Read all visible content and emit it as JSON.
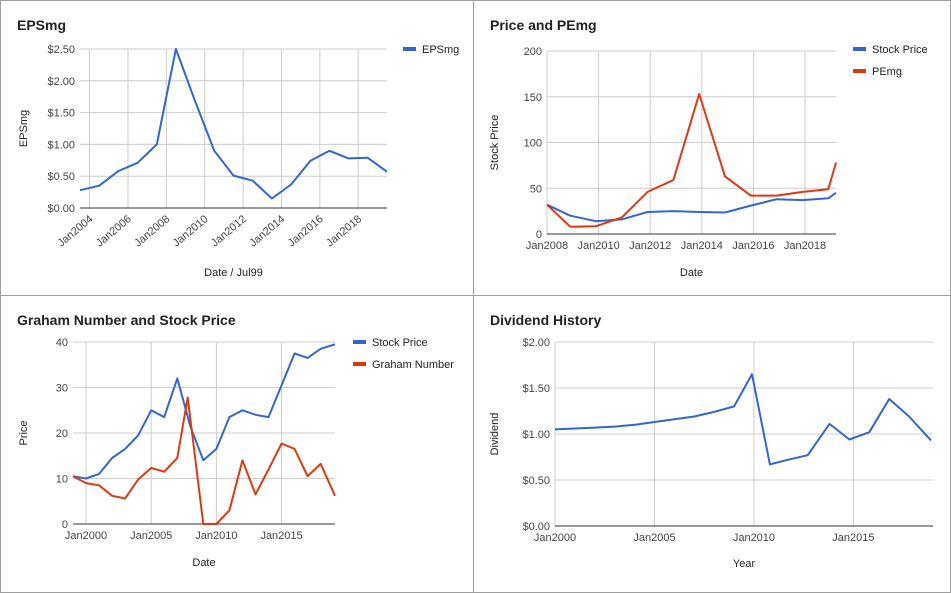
{
  "colors": {
    "blue": "#3366cc",
    "red": "#dc3912",
    "grid": "#cccccc",
    "axis": "#333333"
  },
  "chart_data": [
    {
      "id": "epsmg",
      "type": "line",
      "title": "EPSmg",
      "xlabel": "Date / Jul99",
      "ylabel": "EPSmg",
      "xlim": [
        2003.5,
        2019.5
      ],
      "ylim": [
        0,
        2.5
      ],
      "yticks": [
        {
          "v": 0,
          "label": "$0.00"
        },
        {
          "v": 0.5,
          "label": "$0.50"
        },
        {
          "v": 1,
          "label": "$1.00"
        },
        {
          "v": 1.5,
          "label": "$1.50"
        },
        {
          "v": 2,
          "label": "$2.00"
        },
        {
          "v": 2.5,
          "label": "$2.50"
        }
      ],
      "xticks": [
        {
          "v": 2004,
          "label": "Jan2004"
        },
        {
          "v": 2006,
          "label": "Jan2006"
        },
        {
          "v": 2008,
          "label": "Jan2008"
        },
        {
          "v": 2010,
          "label": "Jan2010"
        },
        {
          "v": 2012,
          "label": "Jan2012"
        },
        {
          "v": 2014,
          "label": "Jan2014"
        },
        {
          "v": 2016,
          "label": "Jan2016"
        },
        {
          "v": 2018,
          "label": "Jan2018"
        }
      ],
      "xtick_rotate": true,
      "legend_position": "top-right",
      "series": [
        {
          "name": "EPSmg",
          "color": "#3366cc",
          "x": [
            2003.5,
            2004.5,
            2005.5,
            2006.5,
            2007.5,
            2008.5,
            2009.5,
            2010.5,
            2011.5,
            2012.5,
            2013.5,
            2014.5,
            2015.5,
            2016.5,
            2017.5,
            2018.5,
            2019.5
          ],
          "y": [
            0.28,
            0.35,
            0.58,
            0.71,
            1.0,
            2.5,
            1.68,
            0.9,
            0.51,
            0.43,
            0.15,
            0.37,
            0.74,
            0.9,
            0.78,
            0.79,
            0.57
          ]
        }
      ]
    },
    {
      "id": "price-pemg",
      "type": "line",
      "title": "Price and PEmg",
      "xlabel": "Date",
      "ylabel": "Stock Price",
      "xlim": [
        2008,
        2019.2
      ],
      "ylim": [
        0,
        200
      ],
      "yticks": [
        {
          "v": 0,
          "label": "0"
        },
        {
          "v": 50,
          "label": "50"
        },
        {
          "v": 100,
          "label": "100"
        },
        {
          "v": 150,
          "label": "150"
        },
        {
          "v": 200,
          "label": "200"
        }
      ],
      "xticks": [
        {
          "v": 2008,
          "label": "Jan2008"
        },
        {
          "v": 2010,
          "label": "Jan2010"
        },
        {
          "v": 2012,
          "label": "Jan2012"
        },
        {
          "v": 2014,
          "label": "Jan2014"
        },
        {
          "v": 2016,
          "label": "Jan2016"
        },
        {
          "v": 2018,
          "label": "Jan2018"
        }
      ],
      "xtick_rotate": false,
      "legend_position": "top-right",
      "series": [
        {
          "name": "Stock Price",
          "color": "#3366cc",
          "x": [
            2008,
            2008.9,
            2009.9,
            2010.9,
            2011.9,
            2012.9,
            2013.9,
            2014.9,
            2015.9,
            2016.9,
            2017.9,
            2018.9,
            2019.2
          ],
          "y": [
            32,
            20,
            14,
            16,
            24,
            25,
            24,
            23.5,
            31,
            38,
            37,
            39,
            45
          ]
        },
        {
          "name": "PEmg",
          "color": "#dc3912",
          "x": [
            2008,
            2008.9,
            2009.9,
            2010.9,
            2011.9,
            2012.9,
            2013.9,
            2014.9,
            2015.9,
            2016.9,
            2017.9,
            2018.9,
            2019.2
          ],
          "y": [
            32,
            8,
            8.5,
            18,
            46,
            59,
            153,
            63,
            42,
            42,
            46,
            49,
            78
          ]
        }
      ]
    },
    {
      "id": "graham",
      "type": "line",
      "title": "Graham Number and Stock Price",
      "xlabel": "Date",
      "ylabel": "Price",
      "xlim": [
        1999,
        2019.1
      ],
      "ylim": [
        0,
        40
      ],
      "yticks": [
        {
          "v": 0,
          "label": "0"
        },
        {
          "v": 10,
          "label": "10"
        },
        {
          "v": 20,
          "label": "20"
        },
        {
          "v": 30,
          "label": "30"
        },
        {
          "v": 40,
          "label": "40"
        }
      ],
      "xticks": [
        {
          "v": 2000,
          "label": "Jan2000"
        },
        {
          "v": 2005,
          "label": "Jan2005"
        },
        {
          "v": 2010,
          "label": "Jan2010"
        },
        {
          "v": 2015,
          "label": "Jan2015"
        }
      ],
      "xtick_rotate": false,
      "legend_position": "top-right",
      "series": [
        {
          "name": "Stock Price",
          "color": "#3366cc",
          "x": [
            1999,
            2000,
            2001,
            2002,
            2003,
            2004,
            2005,
            2006,
            2007,
            2008,
            2009,
            2010,
            2011,
            2012,
            2013,
            2014,
            2015,
            2016,
            2017,
            2018,
            2019.1
          ],
          "y": [
            10.5,
            10,
            11,
            14.5,
            16.5,
            19.5,
            25,
            23.5,
            32,
            21.5,
            14,
            16.5,
            23.5,
            25,
            24,
            23.5,
            30.5,
            37.5,
            36.5,
            38.5,
            39.5
          ]
        },
        {
          "name": "Graham Number",
          "color": "#dc3912",
          "x": [
            1999,
            2000,
            2001,
            2002,
            2003,
            2004,
            2005,
            2006,
            2007,
            2007.8,
            2009,
            2010,
            2011,
            2012,
            2013,
            2014,
            2015,
            2016,
            2017,
            2018,
            2019.1
          ],
          "y": [
            10.5,
            9,
            8.5,
            6.2,
            5.6,
            9.8,
            12.3,
            11.5,
            14.5,
            27.8,
            0,
            0,
            3,
            14,
            6.5,
            12,
            17.7,
            16.5,
            10.5,
            13.2,
            6.2
          ]
        }
      ]
    },
    {
      "id": "dividend",
      "type": "line",
      "title": "Dividend History",
      "xlabel": "Year",
      "ylabel": "Dividend",
      "xlim": [
        2000,
        2019
      ],
      "ylim": [
        0,
        2
      ],
      "yticks": [
        {
          "v": 0,
          "label": "$0.00"
        },
        {
          "v": 0.5,
          "label": "$0.50"
        },
        {
          "v": 1,
          "label": "$1.00"
        },
        {
          "v": 1.5,
          "label": "$1.50"
        },
        {
          "v": 2,
          "label": "$2.00"
        }
      ],
      "xticks": [
        {
          "v": 2000,
          "label": "Jan2000"
        },
        {
          "v": 2005,
          "label": "Jan2005"
        },
        {
          "v": 2010,
          "label": "Jan2010"
        },
        {
          "v": 2015,
          "label": "Jan2015"
        }
      ],
      "xtick_rotate": false,
      "legend_position": "none",
      "series": [
        {
          "name": "",
          "color": "#3366cc",
          "x": [
            2000,
            2001,
            2002,
            2003,
            2004,
            2005,
            2006,
            2007,
            2008,
            2009,
            2009.9,
            2010.8,
            2011.7,
            2012.7,
            2013.8,
            2014.8,
            2015.8,
            2016.8,
            2017.8,
            2018.9
          ],
          "y": [
            1.05,
            1.06,
            1.07,
            1.08,
            1.1,
            1.13,
            1.16,
            1.19,
            1.24,
            1.3,
            1.65,
            0.67,
            0.72,
            0.77,
            1.11,
            0.94,
            1.02,
            1.38,
            1.19,
            0.93
          ]
        }
      ]
    }
  ]
}
